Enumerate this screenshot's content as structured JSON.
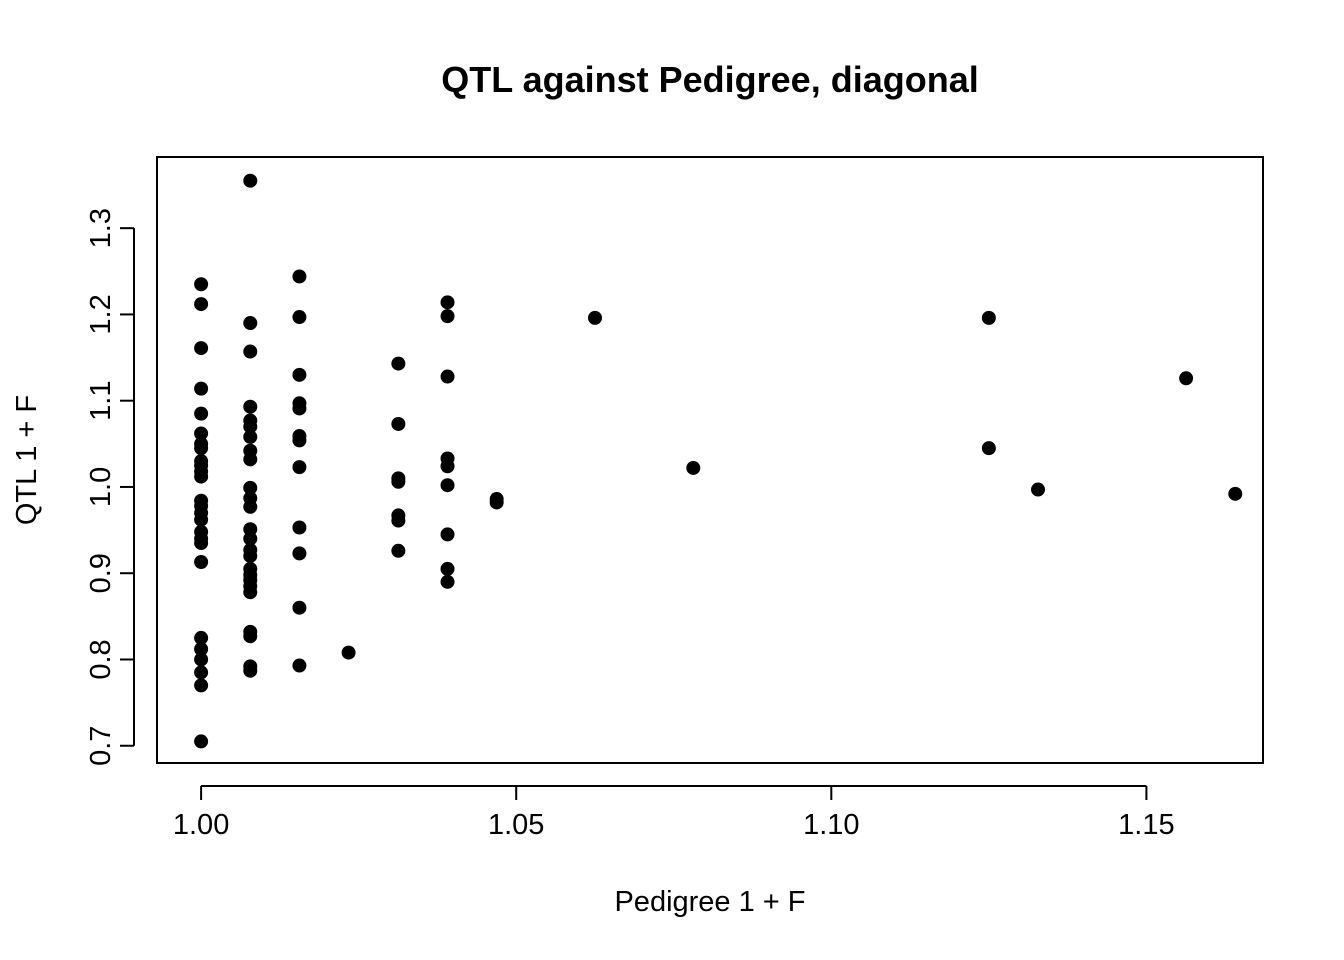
{
  "chart_data": {
    "type": "scatter",
    "title": "QTL against Pedigree, diagonal",
    "xlabel": "Pedigree 1 + F",
    "ylabel": "QTL 1 + F",
    "xlim": [
      0.993,
      1.1685
    ],
    "ylim": [
      0.68,
      1.3825
    ],
    "x_ticks": [
      1.0,
      1.05,
      1.1,
      1.15
    ],
    "x_tick_labels": [
      "1.00",
      "1.05",
      "1.10",
      "1.15"
    ],
    "y_ticks": [
      0.7,
      0.8,
      0.9,
      1.0,
      1.1,
      1.2,
      1.3
    ],
    "y_tick_labels": [
      "0.7",
      "0.8",
      "0.9",
      "1.0",
      "1.1",
      "1.2",
      "1.3"
    ],
    "grid": false,
    "legend": "none",
    "marker_color": "#000000",
    "points": [
      [
        1.0,
        1.235
      ],
      [
        1.0,
        1.212
      ],
      [
        1.0,
        1.161
      ],
      [
        1.0,
        1.114
      ],
      [
        1.0,
        1.085
      ],
      [
        1.0,
        1.062
      ],
      [
        1.0,
        1.05
      ],
      [
        1.0,
        1.045
      ],
      [
        1.0,
        1.03
      ],
      [
        1.0,
        1.025
      ],
      [
        1.0,
        1.018
      ],
      [
        1.0,
        1.012
      ],
      [
        1.0,
        0.984
      ],
      [
        1.0,
        0.978
      ],
      [
        1.0,
        0.97
      ],
      [
        1.0,
        0.962
      ],
      [
        1.0,
        0.948
      ],
      [
        1.0,
        0.94
      ],
      [
        1.0,
        0.935
      ],
      [
        1.0,
        0.913
      ],
      [
        1.0,
        0.825
      ],
      [
        1.0,
        0.812
      ],
      [
        1.0,
        0.8
      ],
      [
        1.0,
        0.785
      ],
      [
        1.0,
        0.77
      ],
      [
        1.0,
        0.705
      ],
      [
        1.0078,
        1.355
      ],
      [
        1.0078,
        1.19
      ],
      [
        1.0078,
        1.157
      ],
      [
        1.0078,
        1.093
      ],
      [
        1.0078,
        1.077
      ],
      [
        1.0078,
        1.07
      ],
      [
        1.0078,
        1.058
      ],
      [
        1.0078,
        1.042
      ],
      [
        1.0078,
        1.032
      ],
      [
        1.0078,
        0.999
      ],
      [
        1.0078,
        0.987
      ],
      [
        1.0078,
        0.977
      ],
      [
        1.0078,
        0.951
      ],
      [
        1.0078,
        0.94
      ],
      [
        1.0078,
        0.927
      ],
      [
        1.0078,
        0.92
      ],
      [
        1.0078,
        0.905
      ],
      [
        1.0078,
        0.898
      ],
      [
        1.0078,
        0.892
      ],
      [
        1.0078,
        0.885
      ],
      [
        1.0078,
        0.878
      ],
      [
        1.0078,
        0.832
      ],
      [
        1.0078,
        0.827
      ],
      [
        1.0078,
        0.792
      ],
      [
        1.0078,
        0.787
      ],
      [
        1.0156,
        1.244
      ],
      [
        1.0156,
        1.197
      ],
      [
        1.0156,
        1.13
      ],
      [
        1.0156,
        1.097
      ],
      [
        1.0156,
        1.091
      ],
      [
        1.0156,
        1.059
      ],
      [
        1.0156,
        1.054
      ],
      [
        1.0156,
        1.023
      ],
      [
        1.0156,
        0.953
      ],
      [
        1.0156,
        0.923
      ],
      [
        1.0156,
        0.86
      ],
      [
        1.0156,
        0.793
      ],
      [
        1.0234,
        0.808
      ],
      [
        1.0313,
        1.143
      ],
      [
        1.0313,
        1.073
      ],
      [
        1.0313,
        1.01
      ],
      [
        1.0313,
        1.006
      ],
      [
        1.0313,
        0.967
      ],
      [
        1.0313,
        0.961
      ],
      [
        1.0313,
        0.926
      ],
      [
        1.0391,
        1.214
      ],
      [
        1.0391,
        1.198
      ],
      [
        1.0391,
        1.128
      ],
      [
        1.0391,
        1.033
      ],
      [
        1.0391,
        1.024
      ],
      [
        1.0391,
        1.002
      ],
      [
        1.0391,
        0.945
      ],
      [
        1.0391,
        0.905
      ],
      [
        1.0391,
        0.89
      ],
      [
        1.0469,
        0.986
      ],
      [
        1.0469,
        0.982
      ],
      [
        1.0625,
        1.196
      ],
      [
        1.0781,
        1.022
      ],
      [
        1.125,
        1.196
      ],
      [
        1.125,
        1.045
      ],
      [
        1.1328,
        0.997
      ],
      [
        1.1563,
        1.126
      ],
      [
        1.1641,
        0.992
      ]
    ]
  }
}
